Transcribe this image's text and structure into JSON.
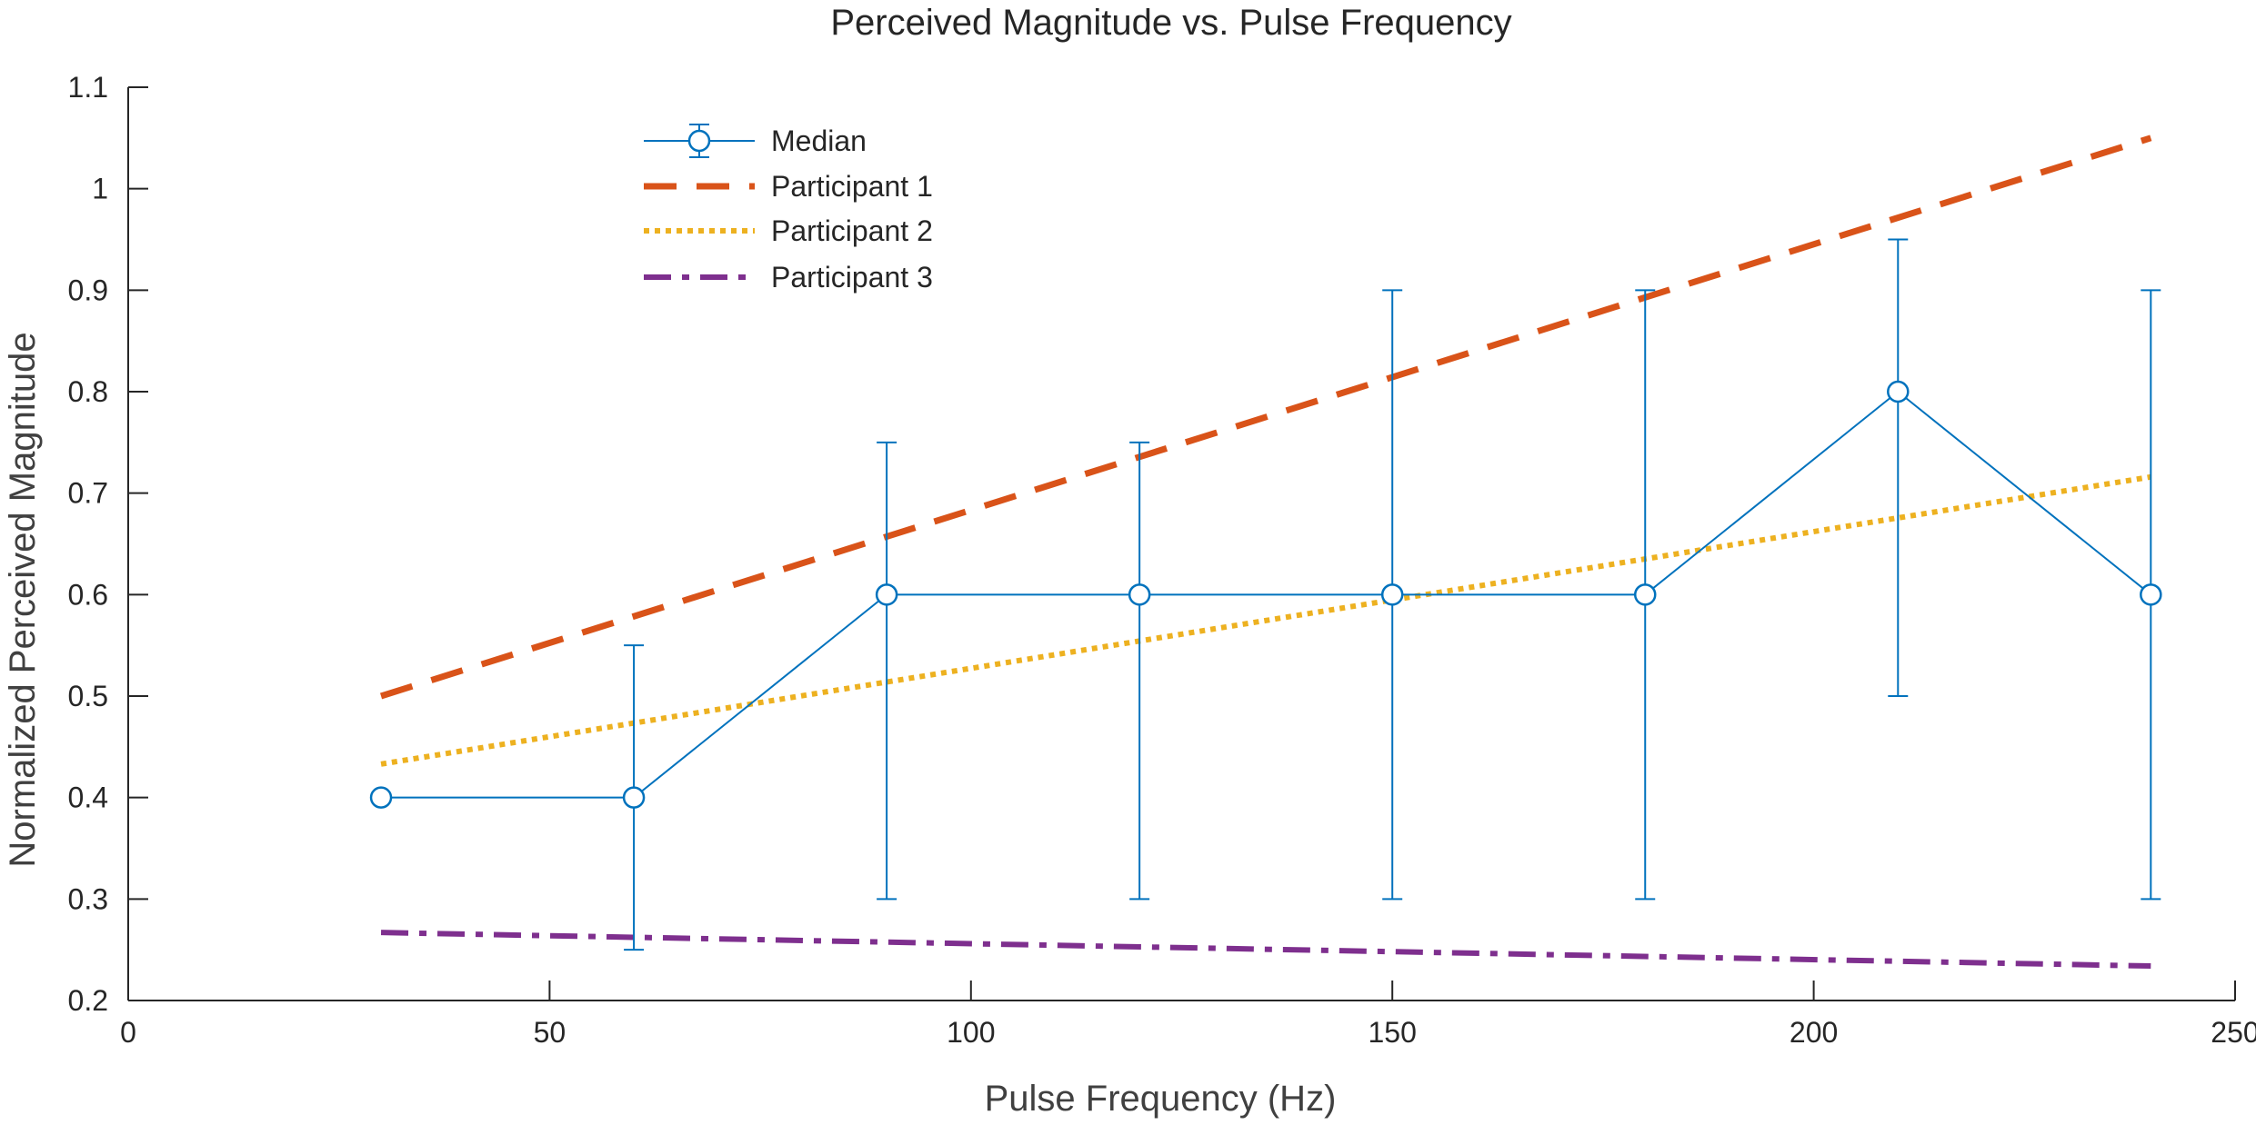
{
  "chart_data": {
    "type": "line",
    "title": "Perceived Magnitude vs. Pulse Frequency",
    "xlabel": "Pulse Frequency (Hz)",
    "ylabel": "Normalized Perceived Magnitude",
    "xlim": [
      0,
      250
    ],
    "ylim": [
      0.2,
      1.1
    ],
    "x_ticks": [
      0,
      50,
      100,
      150,
      200,
      250
    ],
    "x_tick_labels": [
      "0",
      "50",
      "100",
      "150",
      "200",
      "250"
    ],
    "y_ticks": [
      0.2,
      0.3,
      0.4,
      0.5,
      0.6,
      0.7,
      0.8,
      0.9,
      1.0,
      1.1
    ],
    "y_tick_labels": [
      "0.2",
      "0.3",
      "0.4",
      "0.5",
      "0.6",
      "0.7",
      "0.8",
      "0.9",
      "1",
      "1.1"
    ],
    "grid": false,
    "legend_position": "top-left",
    "series": [
      {
        "name": "Median",
        "style": "solid-with-circle-markers-and-error-bars",
        "color": "#0072BD",
        "x": [
          30,
          60,
          90,
          120,
          150,
          180,
          210,
          240
        ],
        "y": [
          0.4,
          0.4,
          0.6,
          0.6,
          0.6,
          0.6,
          0.8,
          0.6
        ],
        "error_low": [
          0.4,
          0.25,
          0.3,
          0.3,
          0.3,
          0.3,
          0.5,
          0.3
        ],
        "error_high": [
          0.4,
          0.55,
          0.75,
          0.75,
          0.9,
          0.9,
          0.95,
          0.9
        ]
      },
      {
        "name": "Participant 1",
        "style": "dashed",
        "color": "#D95319",
        "x": [
          30,
          240
        ],
        "y": [
          0.5,
          1.05
        ]
      },
      {
        "name": "Participant 2",
        "style": "dotted",
        "color": "#EDB120",
        "x": [
          30,
          240
        ],
        "y": [
          0.433,
          0.716
        ]
      },
      {
        "name": "Participant 3",
        "style": "dash-dot",
        "color": "#7E2F8E",
        "x": [
          30,
          240
        ],
        "y": [
          0.267,
          0.234
        ]
      }
    ]
  }
}
